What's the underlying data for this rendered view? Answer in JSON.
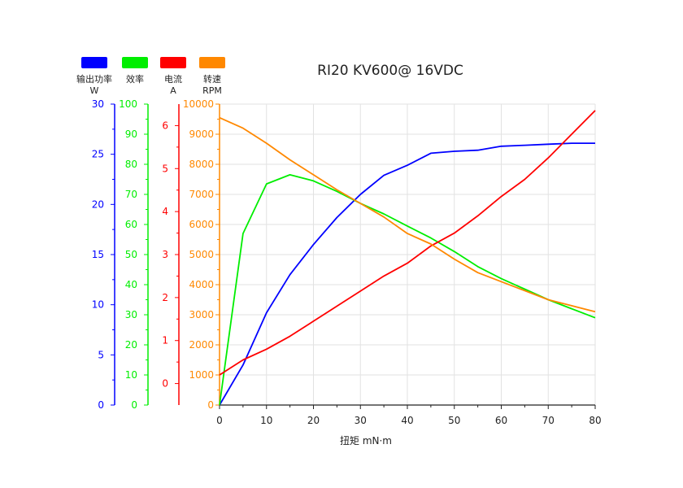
{
  "chart_data": {
    "type": "line",
    "title": "RI20 KV600@ 16VDC",
    "xlabel": "扭矩 mN·m",
    "xlim": [
      0,
      80
    ],
    "xticks": [
      0,
      10,
      20,
      30,
      40,
      50,
      60,
      70,
      80
    ],
    "grid": true,
    "legend_position": "top-left",
    "axes": [
      {
        "id": "power",
        "color": "#0000ff",
        "ylim": [
          0,
          30
        ],
        "ticks": [
          0,
          5,
          10,
          15,
          20,
          25,
          30
        ]
      },
      {
        "id": "efficiency",
        "color": "#00ee00",
        "ylim": [
          0,
          100
        ],
        "ticks": [
          0,
          10,
          20,
          30,
          40,
          50,
          60,
          70,
          80,
          90,
          100
        ]
      },
      {
        "id": "current",
        "color": "#ff0000",
        "ylim": [
          -0.5,
          6.5
        ],
        "ticks": [
          0,
          1,
          2,
          3,
          4,
          5,
          6
        ]
      },
      {
        "id": "speed",
        "color": "#ff8800",
        "ylim": [
          0,
          10000
        ],
        "ticks": [
          0,
          1000,
          2000,
          3000,
          4000,
          5000,
          6000,
          7000,
          8000,
          9000,
          10000
        ]
      }
    ],
    "series": [
      {
        "name": "输出功率",
        "unit": "W",
        "axis": "power",
        "color": "#0000ff",
        "x": [
          0,
          5,
          10,
          15,
          20,
          25,
          30,
          35,
          40,
          45,
          50,
          55,
          60,
          65,
          70,
          75,
          80
        ],
        "values": [
          0,
          4,
          9.2,
          13,
          16,
          18.7,
          21,
          22.9,
          23.9,
          25.1,
          25.3,
          25.4,
          25.8,
          25.9,
          26,
          26.1,
          26.1
        ]
      },
      {
        "name": "效率",
        "unit": "",
        "axis": "efficiency",
        "color": "#00ee00",
        "x": [
          0,
          5,
          10,
          15,
          20,
          25,
          30,
          35,
          40,
          45,
          50,
          55,
          60,
          65,
          70,
          75,
          80
        ],
        "values": [
          0,
          57,
          73.5,
          76.5,
          74.5,
          71,
          67,
          63.5,
          59.5,
          55.5,
          51,
          46,
          42,
          38.5,
          35,
          32,
          29
        ]
      },
      {
        "name": "电流",
        "unit": "A",
        "axis": "current",
        "color": "#ff0000",
        "x": [
          0,
          5,
          10,
          15,
          20,
          25,
          30,
          35,
          40,
          45,
          50,
          55,
          60,
          65,
          70,
          75,
          80
        ],
        "values": [
          0.2,
          0.55,
          0.8,
          1.1,
          1.45,
          1.8,
          2.15,
          2.5,
          2.8,
          3.2,
          3.5,
          3.9,
          4.35,
          4.75,
          5.25,
          5.8,
          6.35
        ]
      },
      {
        "name": "转速",
        "unit": "RPM",
        "axis": "speed",
        "color": "#ff8800",
        "x": [
          0,
          5,
          10,
          15,
          20,
          25,
          30,
          35,
          40,
          45,
          50,
          55,
          60,
          65,
          70,
          75,
          80
        ],
        "values": [
          9550,
          9200,
          8700,
          8150,
          7650,
          7150,
          6700,
          6250,
          5700,
          5350,
          4850,
          4400,
          4100,
          3800,
          3500,
          3300,
          3100
        ]
      }
    ]
  }
}
